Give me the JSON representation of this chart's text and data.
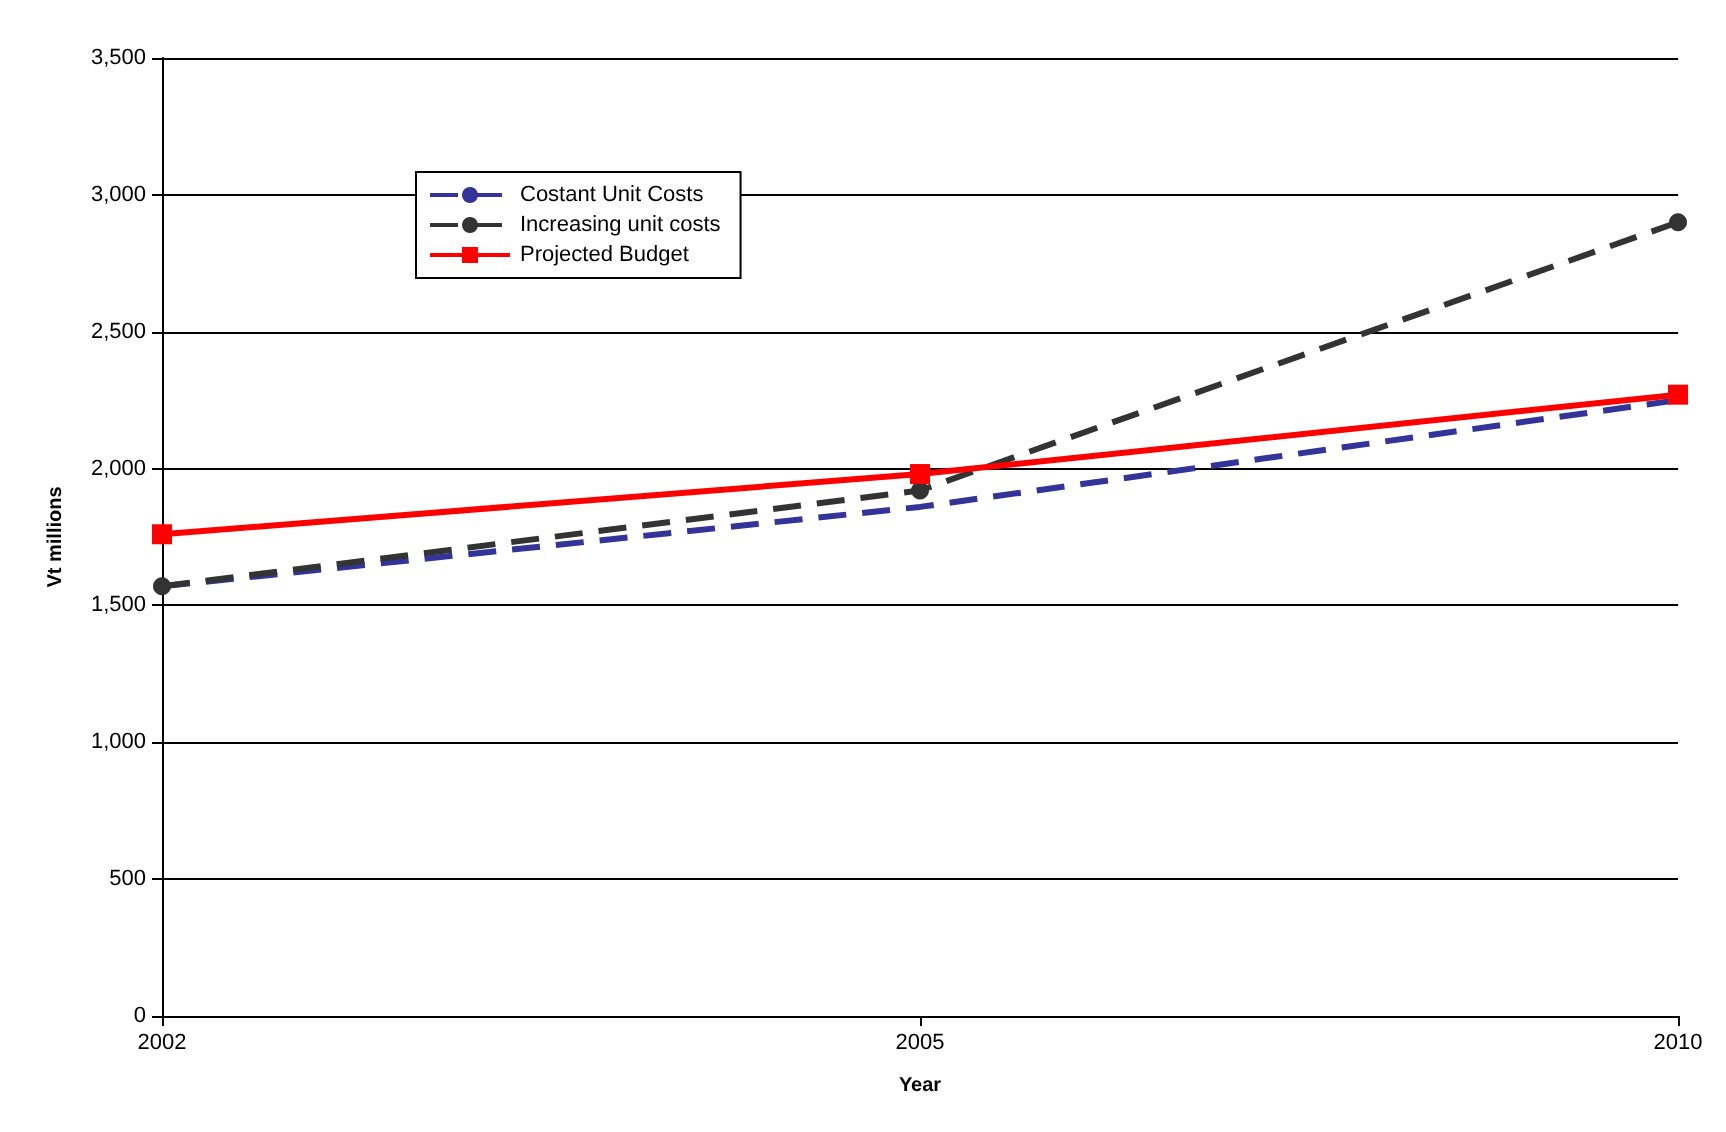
{
  "chart_data": {
    "type": "line",
    "xlabel": "Year",
    "ylabel": "Vt millions",
    "categories": [
      "2002",
      "2005",
      "2010"
    ],
    "series": [
      {
        "name": "Costant Unit Costs",
        "color": "#333399",
        "values": [
          1570,
          1860,
          2250
        ],
        "line_style": "dashed",
        "marker": "none"
      },
      {
        "name": "Increasing unit costs",
        "color": "#333333",
        "values": [
          1570,
          1920,
          2900
        ],
        "line_style": "dashed",
        "marker": "circle"
      },
      {
        "name": "Projected Budget",
        "color": "#ff0000",
        "values": [
          1760,
          1980,
          2270
        ],
        "line_style": "solid",
        "marker": "square"
      }
    ],
    "ylim": [
      0,
      3500
    ],
    "yticks": [
      {
        "value": 0,
        "label": "0"
      },
      {
        "value": 500,
        "label": "500"
      },
      {
        "value": 1000,
        "label": "1,000"
      },
      {
        "value": 1500,
        "label": "1,500"
      },
      {
        "value": 2000,
        "label": "2,000"
      },
      {
        "value": 2500,
        "label": "2,500"
      },
      {
        "value": 3000,
        "label": "3,000"
      },
      {
        "value": 3500,
        "label": "3,500"
      }
    ],
    "grid": "y",
    "legend": "top left"
  }
}
